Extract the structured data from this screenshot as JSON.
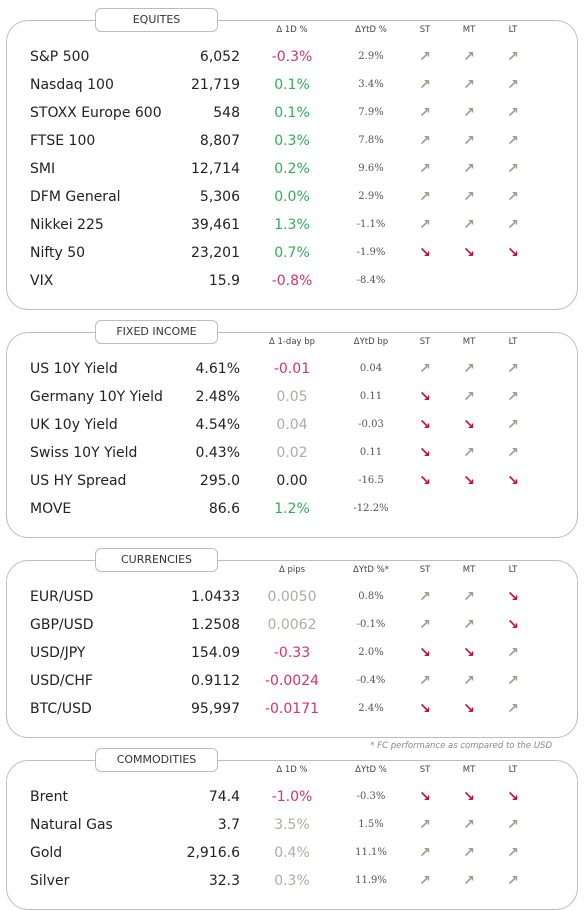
{
  "sections": [
    {
      "title": "EQUITES",
      "headers": [
        "Δ 1D %",
        "ΔYtD %",
        "ST",
        "MT",
        "LT"
      ],
      "rows": [
        {
          "name": "S&P 500",
          "value": "6,052",
          "change": "-0.3%",
          "change_color": "#d6336c",
          "ytd": "2.9%",
          "st": "↗",
          "mt": "↗",
          "lt": "↗"
        },
        {
          "name": "Nasdaq 100",
          "value": "21,719",
          "change": "0.1%",
          "change_color": "#2fae5a",
          "ytd": "3.4%",
          "st": "↗",
          "mt": "↗",
          "lt": "↗"
        },
        {
          "name": "STOXX Europe 600",
          "value": "548",
          "change": "0.1%",
          "change_color": "#2fae5a",
          "ytd": "7.9%",
          "st": "↗",
          "mt": "↗",
          "lt": "↗"
        },
        {
          "name": "FTSE 100",
          "value": "8,807",
          "change": "0.3%",
          "change_color": "#2fae5a",
          "ytd": "7.8%",
          "st": "↗",
          "mt": "↗",
          "lt": "↗"
        },
        {
          "name": "SMI",
          "value": "12,714",
          "change": "0.2%",
          "change_color": "#2fae5a",
          "ytd": "9.6%",
          "st": "↗",
          "mt": "↗",
          "lt": "↗"
        },
        {
          "name": "DFM General",
          "value": "5,306",
          "change": "0.0%",
          "change_color": "#2fae5a",
          "ytd": "2.9%",
          "st": "↗",
          "mt": "↗",
          "lt": "↗"
        },
        {
          "name": "Nikkei 225",
          "value": "39,461",
          "change": "1.3%",
          "change_color": "#2fae5a",
          "ytd": "-1.1%",
          "st": "↗",
          "mt": "↗",
          "lt": "↗"
        },
        {
          "name": "Nifty 50",
          "value": "23,201",
          "change": "0.7%",
          "change_color": "#2fae5a",
          "ytd": "-1.9%",
          "st": "↘",
          "mt": "↘",
          "lt": "↘"
        },
        {
          "name": "VIX",
          "value": "15.9",
          "change": "-0.8%",
          "change_color": "#d6336c",
          "ytd": "-8.4%",
          "st": null,
          "mt": null,
          "lt": null
        }
      ]
    },
    {
      "title": "FIXED INCOME",
      "headers": [
        "Δ 1-day bp",
        "ΔYtD bp",
        "ST",
        "MT",
        "LT"
      ],
      "rows": [
        {
          "name": "US 10Y Yield",
          "value": "4.61%",
          "change": "-0.01",
          "change_color": "#d6336c",
          "ytd": "0.04",
          "st": "↗",
          "mt": "↗",
          "lt": "↗"
        },
        {
          "name": "Germany 10Y Yield",
          "value": "2.48%",
          "change": "0.05",
          "change_color": "#b3aba3",
          "ytd": "0.11",
          "st": "↘",
          "mt": "↗",
          "lt": "↗"
        },
        {
          "name": "UK 10y Yield",
          "value": "4.54%",
          "change": "0.04",
          "change_color": "#b3aba3",
          "ytd": "-0.03",
          "st": "↘",
          "mt": "↘",
          "lt": "↗"
        },
        {
          "name": "Swiss 10Y Yield",
          "value": "0.43%",
          "change": "0.02",
          "change_color": "#b3aba3",
          "ytd": "0.11",
          "st": "↘",
          "mt": "↗",
          "lt": "↗"
        },
        {
          "name": "US HY Spread",
          "value": "295.0",
          "change": "0.00",
          "change_color": "#222222",
          "ytd": "-16.5",
          "st": "↘",
          "mt": "↘",
          "lt": "↘"
        },
        {
          "name": "MOVE",
          "value": "86.6",
          "change": "1.2%",
          "change_color": "#2fae5a",
          "ytd": "-12.2%",
          "st": null,
          "mt": null,
          "lt": null
        }
      ]
    },
    {
      "title": "CURRENCIES",
      "headers": [
        "Δ pips",
        "ΔYtD %*",
        "ST",
        "MT",
        "LT"
      ],
      "rows": [
        {
          "name": "EUR/USD",
          "value": "1.0433",
          "change": "0.0050",
          "change_color": "#b3aba3",
          "ytd": "0.8%",
          "st": "↗",
          "mt": "↗",
          "lt": "↘"
        },
        {
          "name": "GBP/USD",
          "value": "1.2508",
          "change": "0.0062",
          "change_color": "#b3aba3",
          "ytd": "-0.1%",
          "st": "↗",
          "mt": "↗",
          "lt": "↘"
        },
        {
          "name": "USD/JPY",
          "value": "154.09",
          "change": "-0.33",
          "change_color": "#d6336c",
          "ytd": "2.0%",
          "st": "↘",
          "mt": "↘",
          "lt": "↗"
        },
        {
          "name": "USD/CHF",
          "value": "0.9112",
          "change": "-0.0024",
          "change_color": "#d6336c",
          "ytd": "-0.4%",
          "st": "↗",
          "mt": "↗",
          "lt": "↗"
        },
        {
          "name": "BTC/USD",
          "value": "95,997",
          "change": "-0.0171",
          "change_color": "#d6336c",
          "ytd": "2.4%",
          "st": "↘",
          "mt": "↘",
          "lt": "↗"
        }
      ],
      "footnote": "* FC performance as compared to the USD"
    },
    {
      "title": "COMMODITIES",
      "headers": [
        "Δ 1D %",
        "ΔYtD %",
        "ST",
        "MT",
        "LT"
      ],
      "rows": [
        {
          "name": "Brent",
          "value": "74.4",
          "change": "-1.0%",
          "change_color": "#d6336c",
          "ytd": "-0.3%",
          "st": "↘",
          "mt": "↘",
          "lt": "↘"
        },
        {
          "name": "Natural Gas",
          "value": "3.7",
          "change": "3.5%",
          "change_color": "#b3aba3",
          "ytd": "1.5%",
          "st": "↗",
          "mt": "↗",
          "lt": "↗"
        },
        {
          "name": "Gold",
          "value": "2,916.6",
          "change": "0.4%",
          "change_color": "#b3aba3",
          "ytd": "11.1%",
          "st": "↗",
          "mt": "↗",
          "lt": "↗"
        },
        {
          "name": "Silver",
          "value": "32.3",
          "change": "0.3%",
          "change_color": "#b3aba3",
          "ytd": "11.9%",
          "st": "↗",
          "mt": "↗",
          "lt": "↗"
        }
      ]
    }
  ]
}
